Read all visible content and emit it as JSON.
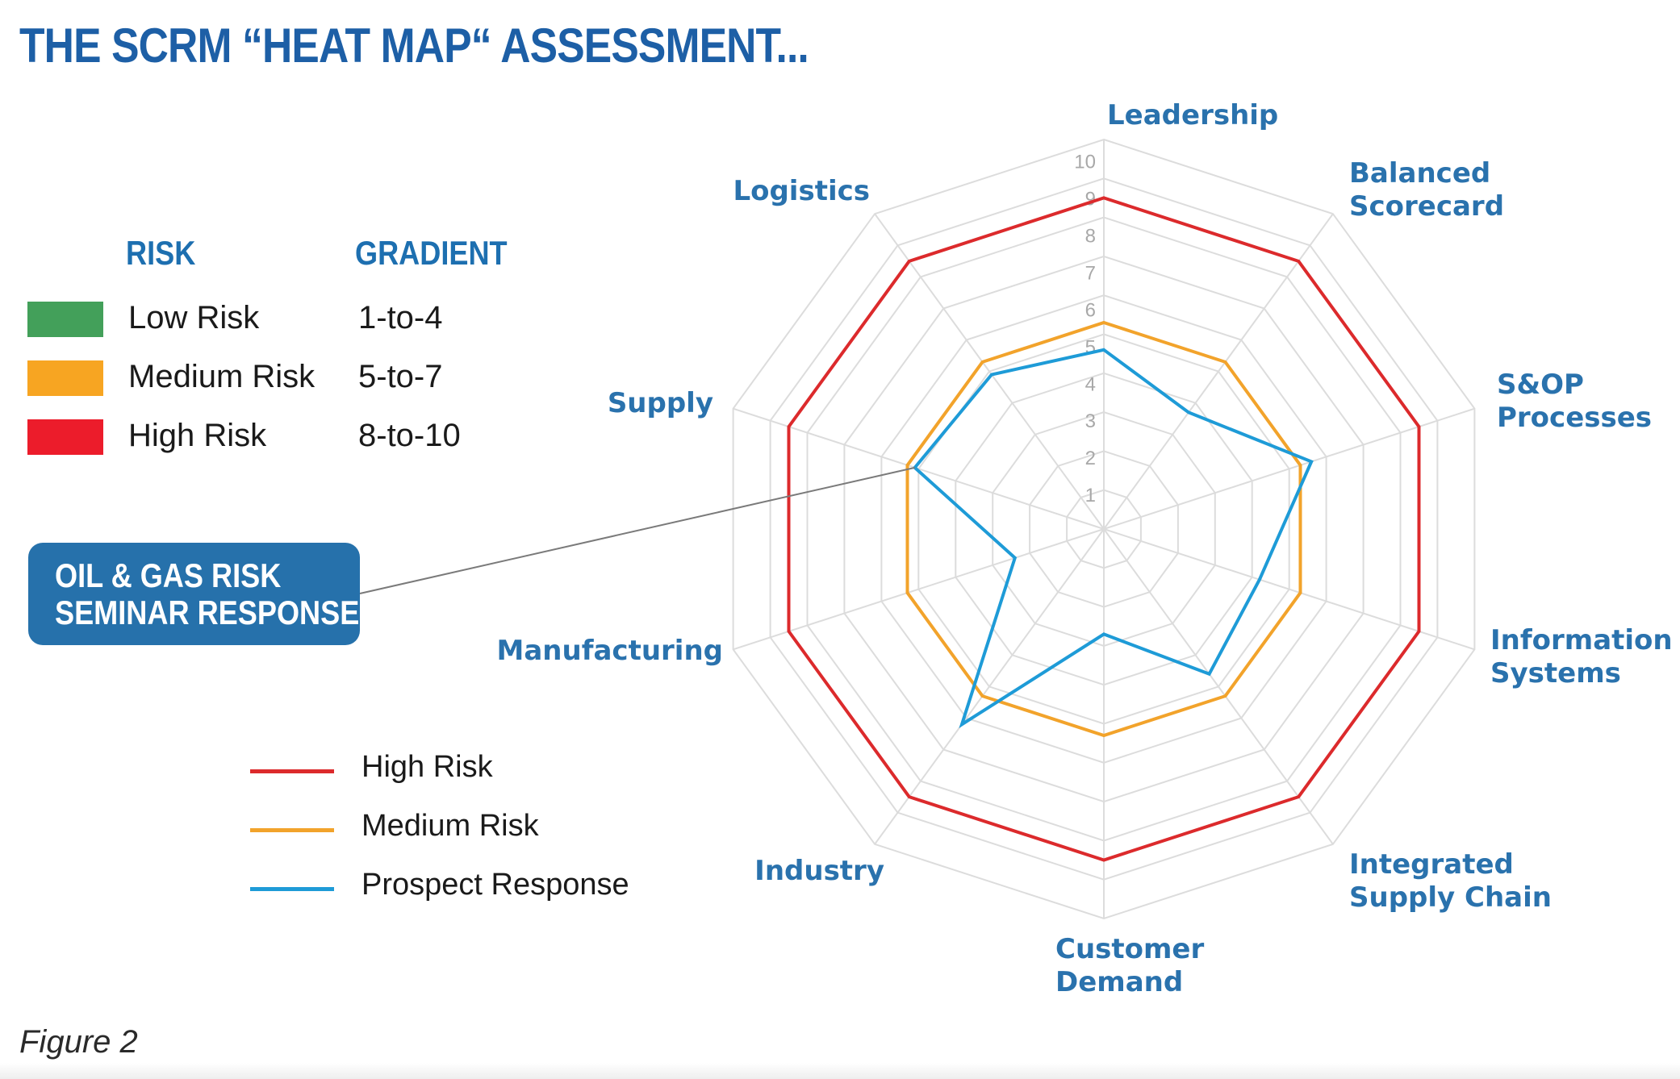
{
  "title": "THE SCRM “HEAT MAP“ ASSESSMENT...",
  "risk_table": {
    "header_risk": "RISK",
    "header_gradient": "GRADIENT",
    "rows": [
      {
        "label": "Low Risk",
        "gradient": "1-to-4",
        "color": "#43a05a"
      },
      {
        "label": "Medium Risk",
        "gradient": "5-to-7",
        "color": "#f7a522"
      },
      {
        "label": "High Risk",
        "gradient": "8-to-10",
        "color": "#ec1c2b"
      }
    ]
  },
  "callout": {
    "line1": "OIL & GAS RISK",
    "line2": "SEMINAR RESPONSE",
    "color": "#2671ab"
  },
  "figure_caption": "Figure 2",
  "chart_data": {
    "type": "radar",
    "axes": [
      [
        "Leadership"
      ],
      [
        "Balanced",
        "Scorecard"
      ],
      [
        "S&OP",
        "Processes"
      ],
      [
        "Information",
        "Systems"
      ],
      [
        "Integrated",
        "Supply Chain"
      ],
      [
        "Customer",
        "Demand"
      ],
      [
        "Industry"
      ],
      [
        "Manufacturing"
      ],
      [
        "Supply"
      ],
      [
        "Logistics"
      ]
    ],
    "r_range": [
      0,
      10
    ],
    "ticks": [
      "1",
      "2",
      "3",
      "4",
      "5",
      "6",
      "7",
      "8",
      "9",
      "10"
    ],
    "grid": true,
    "legend_position": "bottom-left",
    "series": [
      {
        "name": "High Risk",
        "color": "#dc2a2c",
        "values": [
          8.5,
          8.5,
          8.5,
          8.5,
          8.5,
          8.5,
          8.5,
          8.5,
          8.5,
          8.5
        ]
      },
      {
        "name": "Medium Risk",
        "color": "#f2a32b",
        "values": [
          5.3,
          5.3,
          5.3,
          5.3,
          5.3,
          5.3,
          5.3,
          5.3,
          5.3,
          5.3
        ]
      },
      {
        "name": "Prospect Response",
        "color": "#1e9bd7",
        "values": [
          4.6,
          3.7,
          5.6,
          4.2,
          4.6,
          2.7,
          6.2,
          2.4,
          5.1,
          4.9
        ]
      }
    ]
  }
}
